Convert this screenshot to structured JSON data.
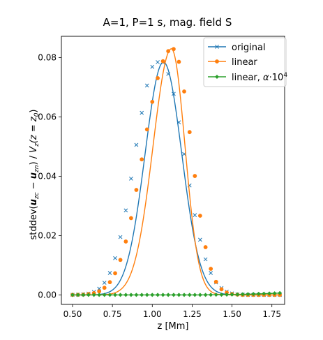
{
  "chart_data": {
    "type": "line",
    "title": "A=1, P=1 s, mag. field S",
    "xlabel": "z [Mm]",
    "ylabel_parts": {
      "prefix": "stddev(",
      "numerator": "u",
      "numerator_sub": "z",
      "numerator_sub2": "c",
      "minus": " − ",
      "numerator2": "u",
      "numerator2_sub": "z",
      "numerator2_sub2": "n",
      "suffix": ") / ",
      "denominator": "V",
      "denominator_sub": "z",
      "denominator_arg": "(z = z",
      "denominator_arg_sub": "0",
      "denominator_arg_end": ")"
    },
    "xlim": [
      0.43,
      1.83
    ],
    "ylim": [
      -0.0032,
      0.0872
    ],
    "xticks": [
      "0.50",
      "0.75",
      "1.00",
      "1.25",
      "1.50",
      "1.75"
    ],
    "xtick_values": [
      0.5,
      0.75,
      1.0,
      1.25,
      1.5,
      1.75
    ],
    "yticks": [
      "0.00",
      "0.02",
      "0.04",
      "0.06",
      "0.08"
    ],
    "ytick_values": [
      0.0,
      0.02,
      0.04,
      0.06,
      0.08
    ],
    "legend_position": "top-right",
    "series": [
      {
        "name": "original",
        "color": "#1f77b4",
        "marker": "x",
        "curve": {
          "type": "gaussian",
          "mu": 1.07,
          "sigma": 0.115,
          "amp": 0.0785
        },
        "x": [
          0.5,
          0.534,
          0.567,
          0.6,
          0.634,
          0.667,
          0.7,
          0.734,
          0.767,
          0.8,
          0.834,
          0.867,
          0.9,
          0.934,
          0.967,
          1.0,
          1.034,
          1.067,
          1.1,
          1.134,
          1.167,
          1.2,
          1.234,
          1.267,
          1.3,
          1.334,
          1.367,
          1.4,
          1.434,
          1.467,
          1.5,
          1.534,
          1.567,
          1.6,
          1.634,
          1.667,
          1.7,
          1.734,
          1.767,
          1.8
        ],
        "y": [
          3e-05,
          8e-05,
          0.0002,
          0.00045,
          0.001,
          0.0021,
          0.0041,
          0.0074,
          0.0124,
          0.0195,
          0.0285,
          0.0392,
          0.0506,
          0.0614,
          0.0706,
          0.0769,
          0.0785,
          0.0784,
          0.0745,
          0.0678,
          0.0582,
          0.0475,
          0.0369,
          0.0269,
          0.0186,
          0.012,
          0.0074,
          0.0042,
          0.0023,
          0.0011,
          0.0005,
          0.0002,
          0.0001,
          0.0,
          0.0,
          0.0,
          0.0,
          0.0,
          0.0,
          0.0
        ]
      },
      {
        "name": "linear",
        "color": "#ff7f0e",
        "marker": "o",
        "curve": {
          "type": "skew",
          "mu": 1.12,
          "sigma_left": 0.115,
          "sigma_right": 0.085,
          "amp": 0.083
        },
        "x": [
          0.5,
          0.534,
          0.567,
          0.6,
          0.634,
          0.667,
          0.7,
          0.734,
          0.767,
          0.8,
          0.834,
          0.867,
          0.9,
          0.934,
          0.967,
          1.0,
          1.034,
          1.067,
          1.1,
          1.134,
          1.167,
          1.2,
          1.234,
          1.267,
          1.3,
          1.334,
          1.367,
          1.4,
          1.434,
          1.467,
          1.5,
          1.534,
          1.567,
          1.6,
          1.634,
          1.667,
          1.7,
          1.734,
          1.767,
          1.8
        ],
        "y": [
          2e-05,
          5e-05,
          0.00012,
          0.0003,
          0.0006,
          0.0012,
          0.0024,
          0.0043,
          0.0073,
          0.0118,
          0.018,
          0.0259,
          0.0354,
          0.0457,
          0.0558,
          0.0651,
          0.0731,
          0.0788,
          0.0822,
          0.0829,
          0.0786,
          0.0686,
          0.0549,
          0.0401,
          0.0267,
          0.0161,
          0.0088,
          0.0044,
          0.0019,
          0.0008,
          0.0003,
          0.0001,
          0.0,
          0.0,
          0.0,
          0.0,
          0.0,
          0.0,
          0.0,
          0.0
        ]
      },
      {
        "name": "linear, α·10⁴",
        "name_text": "linear, ",
        "name_alpha": "α",
        "name_dot": "·10",
        "name_exp": "4",
        "color": "#2ca02c",
        "marker": "D",
        "x": [
          0.5,
          0.534,
          0.567,
          0.6,
          0.634,
          0.667,
          0.7,
          0.734,
          0.767,
          0.8,
          0.834,
          0.867,
          0.9,
          0.934,
          0.967,
          1.0,
          1.034,
          1.067,
          1.1,
          1.134,
          1.167,
          1.2,
          1.234,
          1.267,
          1.3,
          1.334,
          1.367,
          1.4,
          1.434,
          1.467,
          1.5,
          1.534,
          1.567,
          1.6,
          1.634,
          1.667,
          1.7,
          1.734,
          1.767,
          1.8
        ],
        "y": [
          0.0,
          0.0,
          0.0,
          0.0,
          0.0,
          0.0,
          0.0,
          0.0,
          0.0,
          0.0,
          0.0,
          0.0,
          0.0,
          0.0,
          0.0,
          0.0,
          0.0,
          0.0,
          0.0,
          0.0,
          0.0,
          0.0,
          0.0,
          0.0,
          0.0,
          2e-05,
          4e-05,
          6e-05,
          8e-05,
          0.0001,
          0.00013,
          0.00016,
          0.0002,
          0.00024,
          0.00029,
          0.00035,
          0.00041,
          0.00048,
          0.00055,
          0.00062
        ]
      }
    ]
  }
}
